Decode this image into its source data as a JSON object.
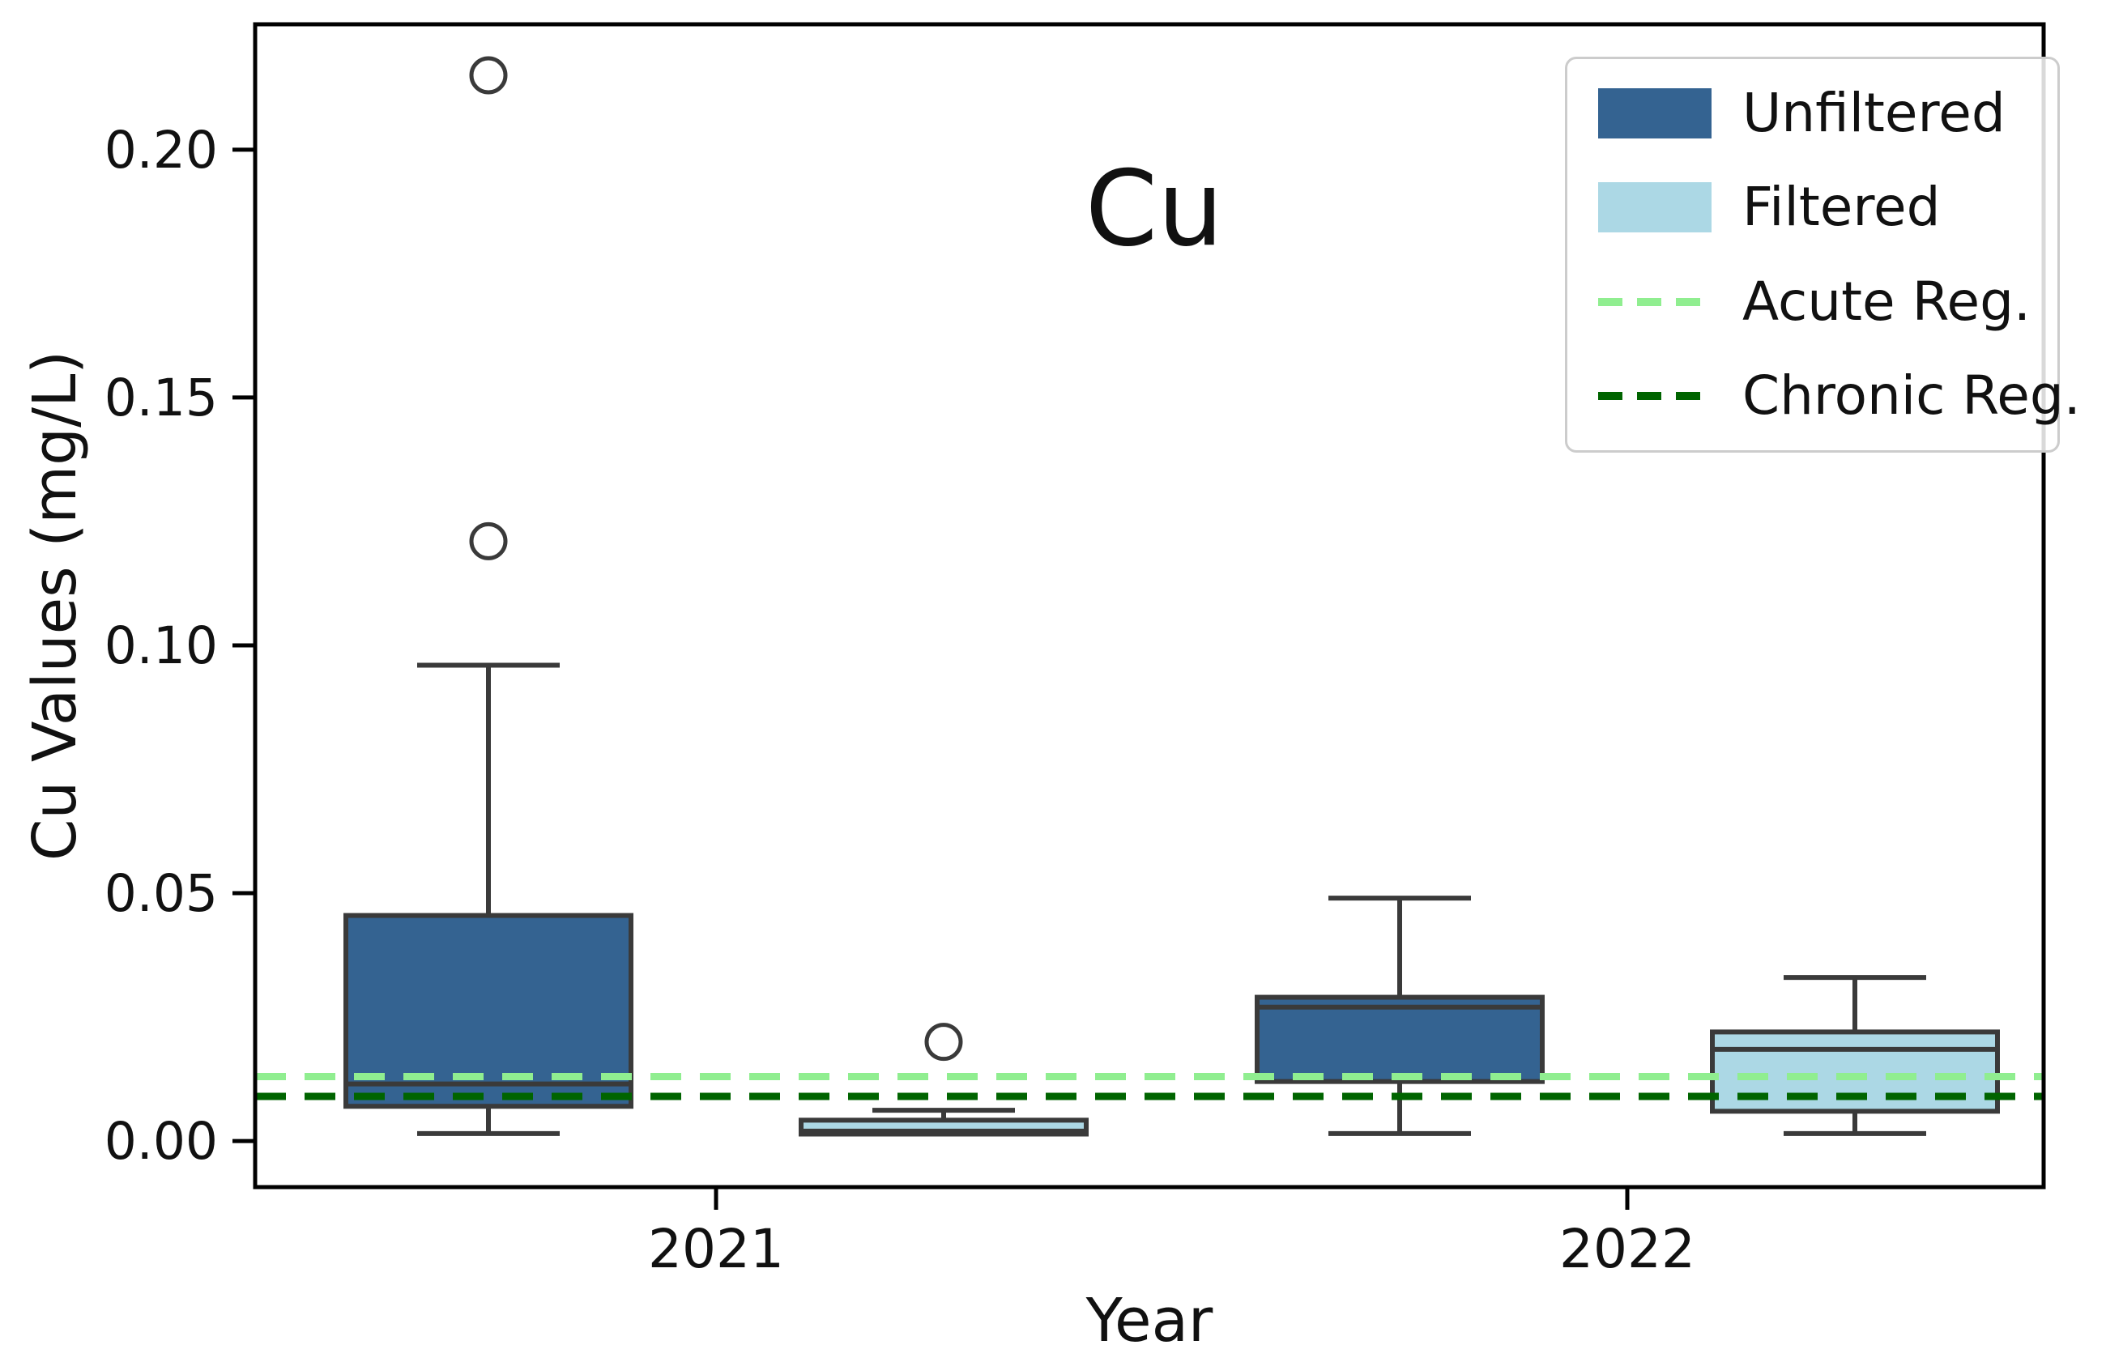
{
  "title": "Cu",
  "legend": {
    "entries": [
      {
        "label": "Unfiltered",
        "swatch": "box",
        "color": "#346391"
      },
      {
        "label": "Filtered",
        "swatch": "box",
        "color": "#ACD8E5"
      },
      {
        "label": "Acute Reg.",
        "swatch": "dashed-line",
        "color": "#90EE90"
      },
      {
        "label": "Chronic Reg.",
        "swatch": "dashed-line",
        "color": "#006400"
      }
    ]
  },
  "chart_data": {
    "type": "boxplot",
    "title": "Cu",
    "xlabel": "Year",
    "ylabel": "Cu Values (mg/L)",
    "categories": [
      "2021",
      "2022"
    ],
    "y_ticks": [
      0.0,
      0.05,
      0.1,
      0.15,
      0.2
    ],
    "y_tick_labels": [
      "0.00",
      "0.05",
      "0.10",
      "0.15",
      "0.20"
    ],
    "ylim": [
      -0.0093,
      0.2253
    ],
    "grid": false,
    "legend_position": "upper right",
    "units": "mg/L",
    "series": [
      {
        "name": "Unfiltered",
        "color": "#346391",
        "boxes": [
          {
            "category": "2021",
            "whisker_low": 0.0015,
            "q1": 0.007,
            "median": 0.0115,
            "q3": 0.0455,
            "whisker_high": 0.096,
            "outliers": [
              0.121,
              0.215
            ]
          },
          {
            "category": "2022",
            "whisker_low": 0.0015,
            "q1": 0.012,
            "median": 0.027,
            "q3": 0.029,
            "whisker_high": 0.049,
            "outliers": []
          }
        ]
      },
      {
        "name": "Filtered",
        "color": "#ACD8E5",
        "boxes": [
          {
            "category": "2021",
            "whisker_low": 0.0014,
            "q1": 0.0014,
            "median": 0.002,
            "q3": 0.0042,
            "whisker_high": 0.0062,
            "outliers": [
              0.02
            ]
          },
          {
            "category": "2022",
            "whisker_low": 0.0015,
            "q1": 0.006,
            "median": 0.0185,
            "q3": 0.022,
            "whisker_high": 0.033,
            "outliers": []
          }
        ]
      }
    ],
    "reference_lines": [
      {
        "name": "Acute Reg.",
        "value": 0.013,
        "color": "#90EE90",
        "style": "dashed"
      },
      {
        "name": "Chronic Reg.",
        "value": 0.009,
        "color": "#006400",
        "style": "dashed"
      }
    ]
  }
}
